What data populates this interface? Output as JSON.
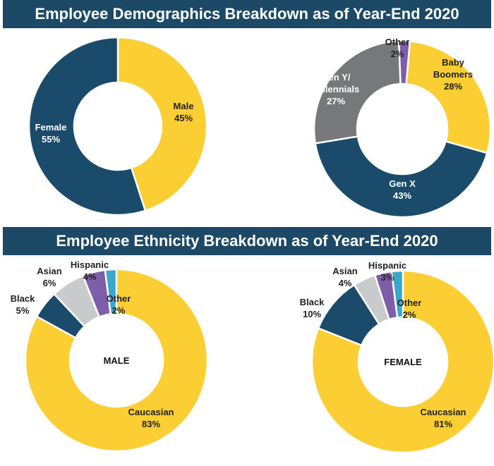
{
  "header": {
    "title_demographics": "Employee Demographics Breakdown as of Year-End 2020",
    "title_ethnicity": "Employee Ethnicity Breakdown as of Year-End 2020"
  },
  "colors": {
    "navy": "#1b4b6b",
    "yellow": "#fbce33",
    "gray": "#77787a",
    "lightgray": "#c9cacc",
    "purple": "#7e5ea8",
    "teal": "#3aa9c9",
    "banner": "#1c4966"
  },
  "chart_data": [
    {
      "type": "pie",
      "id": "gender",
      "title": "Employee Demographics Breakdown as of Year-End 2020",
      "categories": [
        "Male",
        "Female"
      ],
      "values": [
        45,
        55
      ],
      "labels": [
        [
          "Male",
          "45%"
        ],
        [
          "Female",
          "55%"
        ]
      ],
      "colors": [
        "#fbce33",
        "#1b4b6b"
      ],
      "center_label": ""
    },
    {
      "type": "pie",
      "id": "generation",
      "title": "Employee Demographics Breakdown as of Year-End 2020",
      "categories": [
        "Baby Boomers",
        "Gen X",
        "Gen Y/ Millennials",
        "Other"
      ],
      "values": [
        28,
        43,
        27,
        2
      ],
      "labels": [
        [
          "Baby",
          "Boomers",
          "28%"
        ],
        [
          "Gen X",
          "43%"
        ],
        [
          "Gen Y/",
          "Millennials",
          "27%"
        ],
        [
          "Other",
          "2%"
        ]
      ],
      "colors": [
        "#fbce33",
        "#1b4b6b",
        "#77787a",
        "#7e5ea8"
      ],
      "center_label": ""
    },
    {
      "type": "pie",
      "id": "ethnicity_male",
      "title": "Employee Ethnicity Breakdown as of Year-End 2020",
      "categories": [
        "Caucasian",
        "Black",
        "Asian",
        "Hispanic",
        "Other"
      ],
      "values": [
        83,
        5,
        6,
        4,
        2
      ],
      "labels": [
        [
          "Caucasian",
          "83%"
        ],
        [
          "Black",
          "5%"
        ],
        [
          "Asian",
          "6%"
        ],
        [
          "Hispanic",
          "4%"
        ],
        [
          "Other",
          "2%"
        ]
      ],
      "colors": [
        "#fbce33",
        "#1b4b6b",
        "#c9cacc",
        "#7e5ea8",
        "#3aa9c9"
      ],
      "center_label": "MALE"
    },
    {
      "type": "pie",
      "id": "ethnicity_female",
      "title": "Employee Ethnicity Breakdown as of Year-End 2020",
      "categories": [
        "Caucasian",
        "Black",
        "Asian",
        "Hispanic",
        "Other"
      ],
      "values": [
        81,
        10,
        4,
        3,
        2
      ],
      "labels": [
        [
          "Caucasian",
          "81%"
        ],
        [
          "Black",
          "10%"
        ],
        [
          "Asian",
          "4%"
        ],
        [
          "Hispanic",
          "3%"
        ],
        [
          "Other",
          "2%"
        ]
      ],
      "colors": [
        "#fbce33",
        "#1b4b6b",
        "#c9cacc",
        "#7e5ea8",
        "#3aa9c9"
      ],
      "center_label": "FEMALE"
    }
  ]
}
